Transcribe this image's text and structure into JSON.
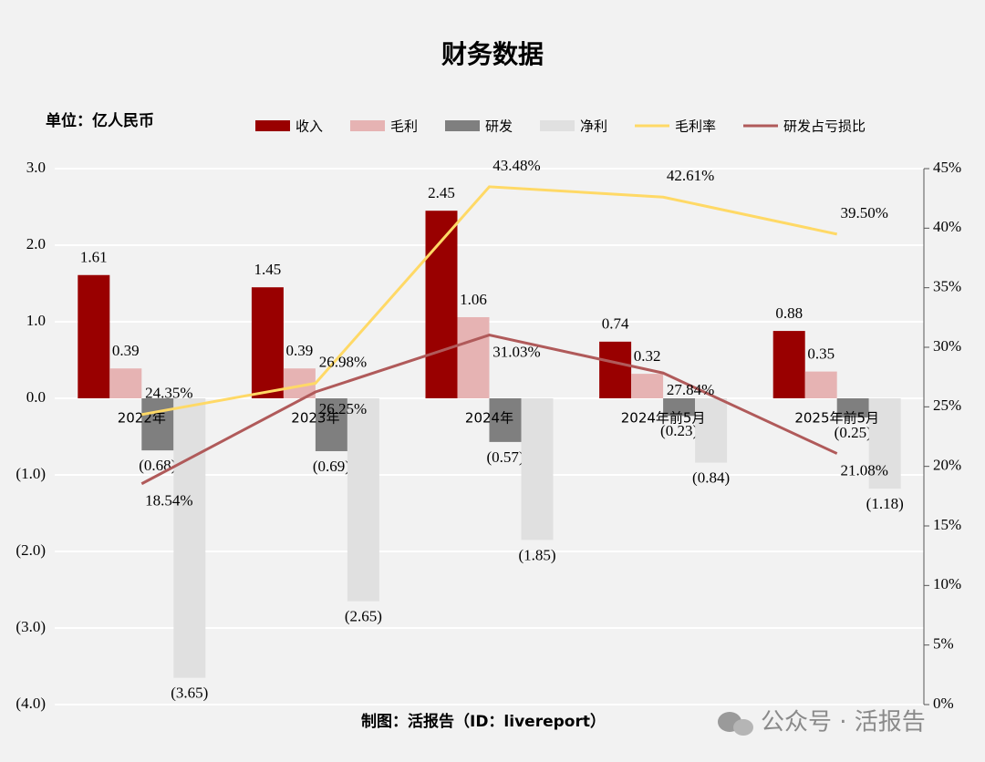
{
  "chart_data": {
    "type": "bar-line",
    "title": "财务数据",
    "unit_label": "单位：亿人民币",
    "source": "制图：活报告（ID：livereport）",
    "watermark": "公众号 · 活报告",
    "categories": [
      "2022年",
      "2023年",
      "2024年",
      "2024年前5月",
      "2025年前5月"
    ],
    "series": [
      {
        "name": "收入",
        "type": "bar",
        "color": "#990000",
        "values": [
          1.61,
          1.45,
          2.45,
          0.74,
          0.88
        ],
        "value_labels": [
          "1.61",
          "1.45",
          "2.45",
          "0.74",
          "0.88"
        ]
      },
      {
        "name": "毛利",
        "type": "bar",
        "color": "#e6b3b3",
        "values": [
          0.39,
          0.39,
          1.06,
          0.32,
          0.35
        ],
        "value_labels": [
          "0.39",
          "0.39",
          "1.06",
          "0.32",
          "0.35"
        ]
      },
      {
        "name": "研发",
        "type": "bar",
        "color": "#7f7f7f",
        "values": [
          -0.68,
          -0.69,
          -0.57,
          -0.23,
          -0.25
        ],
        "value_labels": [
          "(0.68)",
          "(0.69)",
          "(0.57)",
          "(0.23)",
          "(0.25)"
        ]
      },
      {
        "name": "净利",
        "type": "bar",
        "color": "#e0e0e0",
        "values": [
          -3.65,
          -2.65,
          -1.85,
          -0.84,
          -1.18
        ],
        "value_labels": [
          "(3.65)",
          "(2.65)",
          "(1.85)",
          "(0.84)",
          "(1.18)"
        ]
      },
      {
        "name": "毛利率",
        "type": "line",
        "axis": "y2",
        "color": "#ffd966",
        "values": [
          24.35,
          26.98,
          43.48,
          42.61,
          39.5
        ],
        "value_labels": [
          "24.35%",
          "26.98%",
          "43.48%",
          "42.61%",
          "39.50%"
        ]
      },
      {
        "name": "研发占亏损比",
        "type": "line",
        "axis": "y2",
        "color": "#b05a5a",
        "values": [
          18.54,
          26.25,
          31.03,
          27.84,
          21.08
        ],
        "value_labels": [
          "18.54%",
          "26.25%",
          "31.03%",
          "27.84%",
          "21.08%"
        ]
      }
    ],
    "negative_label_color": "#ff0000",
    "ylim": [
      -4,
      3
    ],
    "yticks": [
      {
        "value": 3,
        "label": "3.0"
      },
      {
        "value": 2,
        "label": "2.0"
      },
      {
        "value": 1,
        "label": "1.0"
      },
      {
        "value": 0,
        "label": "0.0"
      },
      {
        "value": -1,
        "label": "(1.0)"
      },
      {
        "value": -2,
        "label": "(2.0)"
      },
      {
        "value": -3,
        "label": "(3.0)"
      },
      {
        "value": -4,
        "label": "(4.0)"
      }
    ],
    "y2lim": [
      0,
      45
    ],
    "y2ticks": [
      {
        "value": 0,
        "label": "0%"
      },
      {
        "value": 5,
        "label": "5%"
      },
      {
        "value": 10,
        "label": "10%"
      },
      {
        "value": 15,
        "label": "15%"
      },
      {
        "value": 20,
        "label": "20%"
      },
      {
        "value": 25,
        "label": "25%"
      },
      {
        "value": 30,
        "label": "30%"
      },
      {
        "value": 35,
        "label": "35%"
      },
      {
        "value": 40,
        "label": "40%"
      },
      {
        "value": 45,
        "label": "45%"
      }
    ],
    "grid": true
  }
}
